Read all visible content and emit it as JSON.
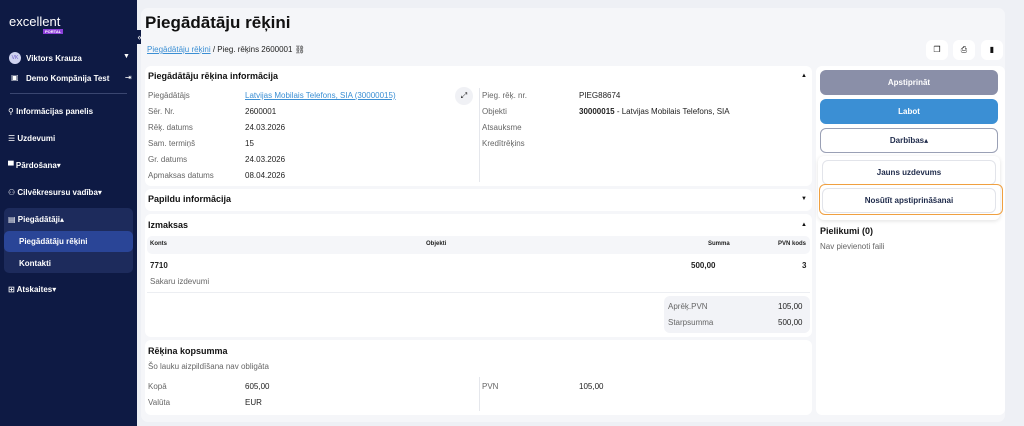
{
  "sidebar": {
    "logo": "excellent",
    "logo_sub": "PORTAL",
    "user_initials": "VK",
    "user_name": "Viktors Krauza",
    "company": "Demo Kompānija Test",
    "items": [
      {
        "label": "Informācijas panelis"
      },
      {
        "label": "Uzdevumi"
      },
      {
        "label": "Pārdošana"
      },
      {
        "label": "Cilvēkresursu vadība"
      },
      {
        "label": "Piegādātāji"
      },
      {
        "label": "Piegādātāju rēķini"
      },
      {
        "label": "Kontakti"
      },
      {
        "label": "Atskaites"
      }
    ]
  },
  "header": {
    "title": "Piegādātāju rēķini",
    "breadcrumb_link": "Piegādātāju rēķini",
    "breadcrumb_sep": " / ",
    "breadcrumb_current": "Pieg. rēķins 2600001"
  },
  "info": {
    "title": "Piegādātāju rēķina informācija",
    "left": [
      {
        "label": "Piegādātājs",
        "value": "Latvijas Mobilais Telefons, SIA (30000015)"
      },
      {
        "label": "Sēr. Nr.",
        "value": "2600001"
      },
      {
        "label": "Rēķ. datums",
        "value": "24.03.2026"
      },
      {
        "label": "Sam. termiņš",
        "value": "15"
      },
      {
        "label": "Gr. datums",
        "value": "24.03.2026"
      },
      {
        "label": "Apmaksas datums",
        "value": "08.04.2026"
      }
    ],
    "right": [
      {
        "label": "Pieg. rēķ. nr.",
        "value": "PIEG88674"
      },
      {
        "label": "Objekti",
        "value_bold": "30000015",
        "value": " - Latvijas Mobilais Telefons, SIA"
      },
      {
        "label": "Atsauksme",
        "value": ""
      },
      {
        "label": "Kredītrēķins",
        "value": ""
      }
    ]
  },
  "extra": {
    "title": "Papildu informācija"
  },
  "costs": {
    "title": "Izmaksas",
    "columns": [
      "Konts",
      "Objekti",
      "Summa",
      "PVN kods"
    ],
    "rows": [
      {
        "account": "7710",
        "description": "Sakaru izdevumi",
        "object": "",
        "amount": "500,00",
        "vat_code": "3"
      }
    ],
    "summary": [
      {
        "label": "Aprēķ.PVN",
        "value": "105,00"
      },
      {
        "label": "Starpsumma",
        "value": "500,00"
      }
    ]
  },
  "total": {
    "title": "Rēķina kopsumma",
    "note": "Šo lauku aizpildīšana nav obligāta",
    "fields": [
      {
        "label": "Kopā",
        "value": "605,00"
      },
      {
        "label": "Valūta",
        "value": "EUR"
      },
      {
        "label": "PVN",
        "value": "105,00"
      }
    ]
  },
  "actions": {
    "approve": "Apstiprināt",
    "edit": "Labot",
    "more": "Darbības",
    "menu": [
      "Jauns uzdevums",
      "Nosūtīt apstiprināšanai"
    ]
  },
  "attachments": {
    "title": "Pielikumi (0)",
    "empty": "Nav pievienoti faili"
  },
  "colors": {
    "sidebar": "#0e1a44",
    "primary": "#3b8fd4",
    "disabled": "#8a8fa8",
    "highlight": "#f0a040"
  }
}
